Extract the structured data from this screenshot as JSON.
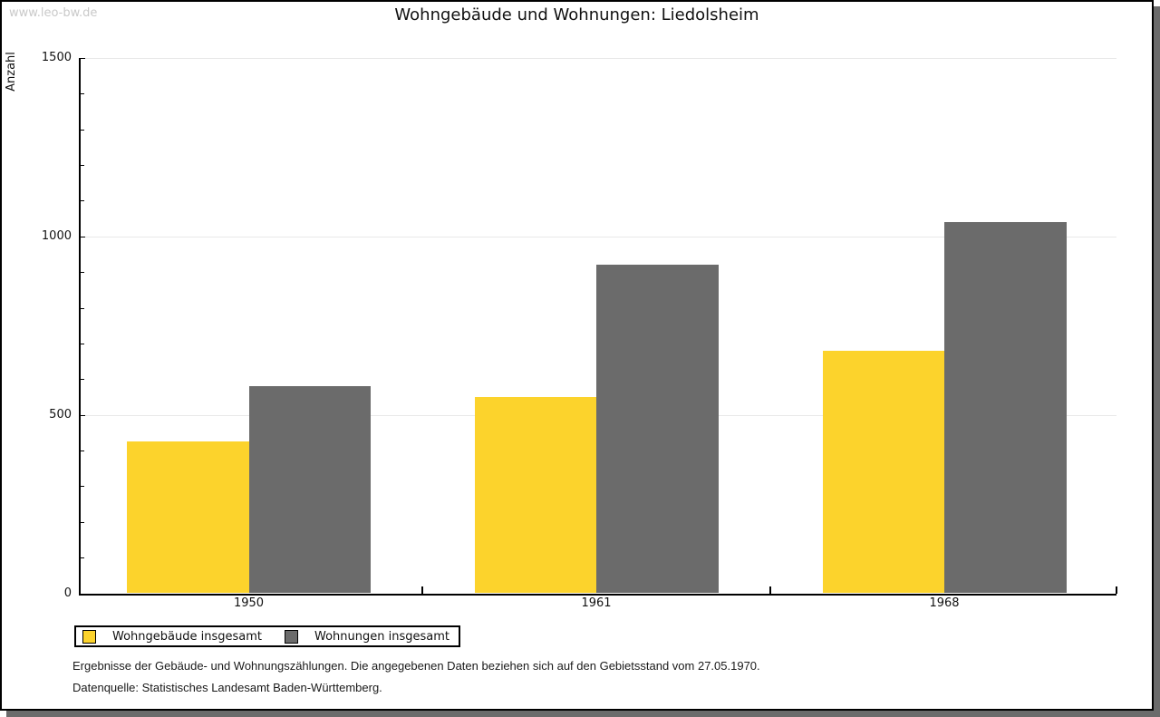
{
  "watermark": "www.leo-bw.de",
  "title": "Wohngebäude und Wohnungen: Liedolsheim",
  "chart_data": {
    "type": "bar",
    "title": "Wohngebäude und Wohnungen: Liedolsheim",
    "categories": [
      "1950",
      "1961",
      "1968"
    ],
    "series": [
      {
        "name": "Wohngebäude insgesamt",
        "color": "#FCD32C",
        "values": [
          425,
          550,
          680
        ]
      },
      {
        "name": "Wohnungen insgesamt",
        "color": "#6B6B6B",
        "values": [
          580,
          920,
          1040
        ]
      }
    ],
    "xlabel": "",
    "ylabel": "Anzahl",
    "ylim": [
      0,
      1500
    ],
    "yticks": [
      0,
      500,
      1000,
      1500
    ],
    "minor_tick_step": 100,
    "grid": "horizontal-major-only",
    "legend_position": "bottom-left"
  },
  "footnotes": {
    "line1": "Ergebnisse der Gebäude- und Wohnungszählungen. Die angegebenen Daten beziehen sich auf den Gebietsstand vom 27.05.1970.",
    "line2": "Datenquelle: Statistisches Landesamt Baden-Württemberg."
  },
  "colors": {
    "bar_yellow": "#FCD32C",
    "bar_gray": "#6B6B6B",
    "gridline": "#E8E8E8",
    "axis": "#000000",
    "watermark": "#C9C9C9",
    "frame_border": "#000000",
    "shadow": "#6B6B6B",
    "background": "#FFFFFF"
  }
}
